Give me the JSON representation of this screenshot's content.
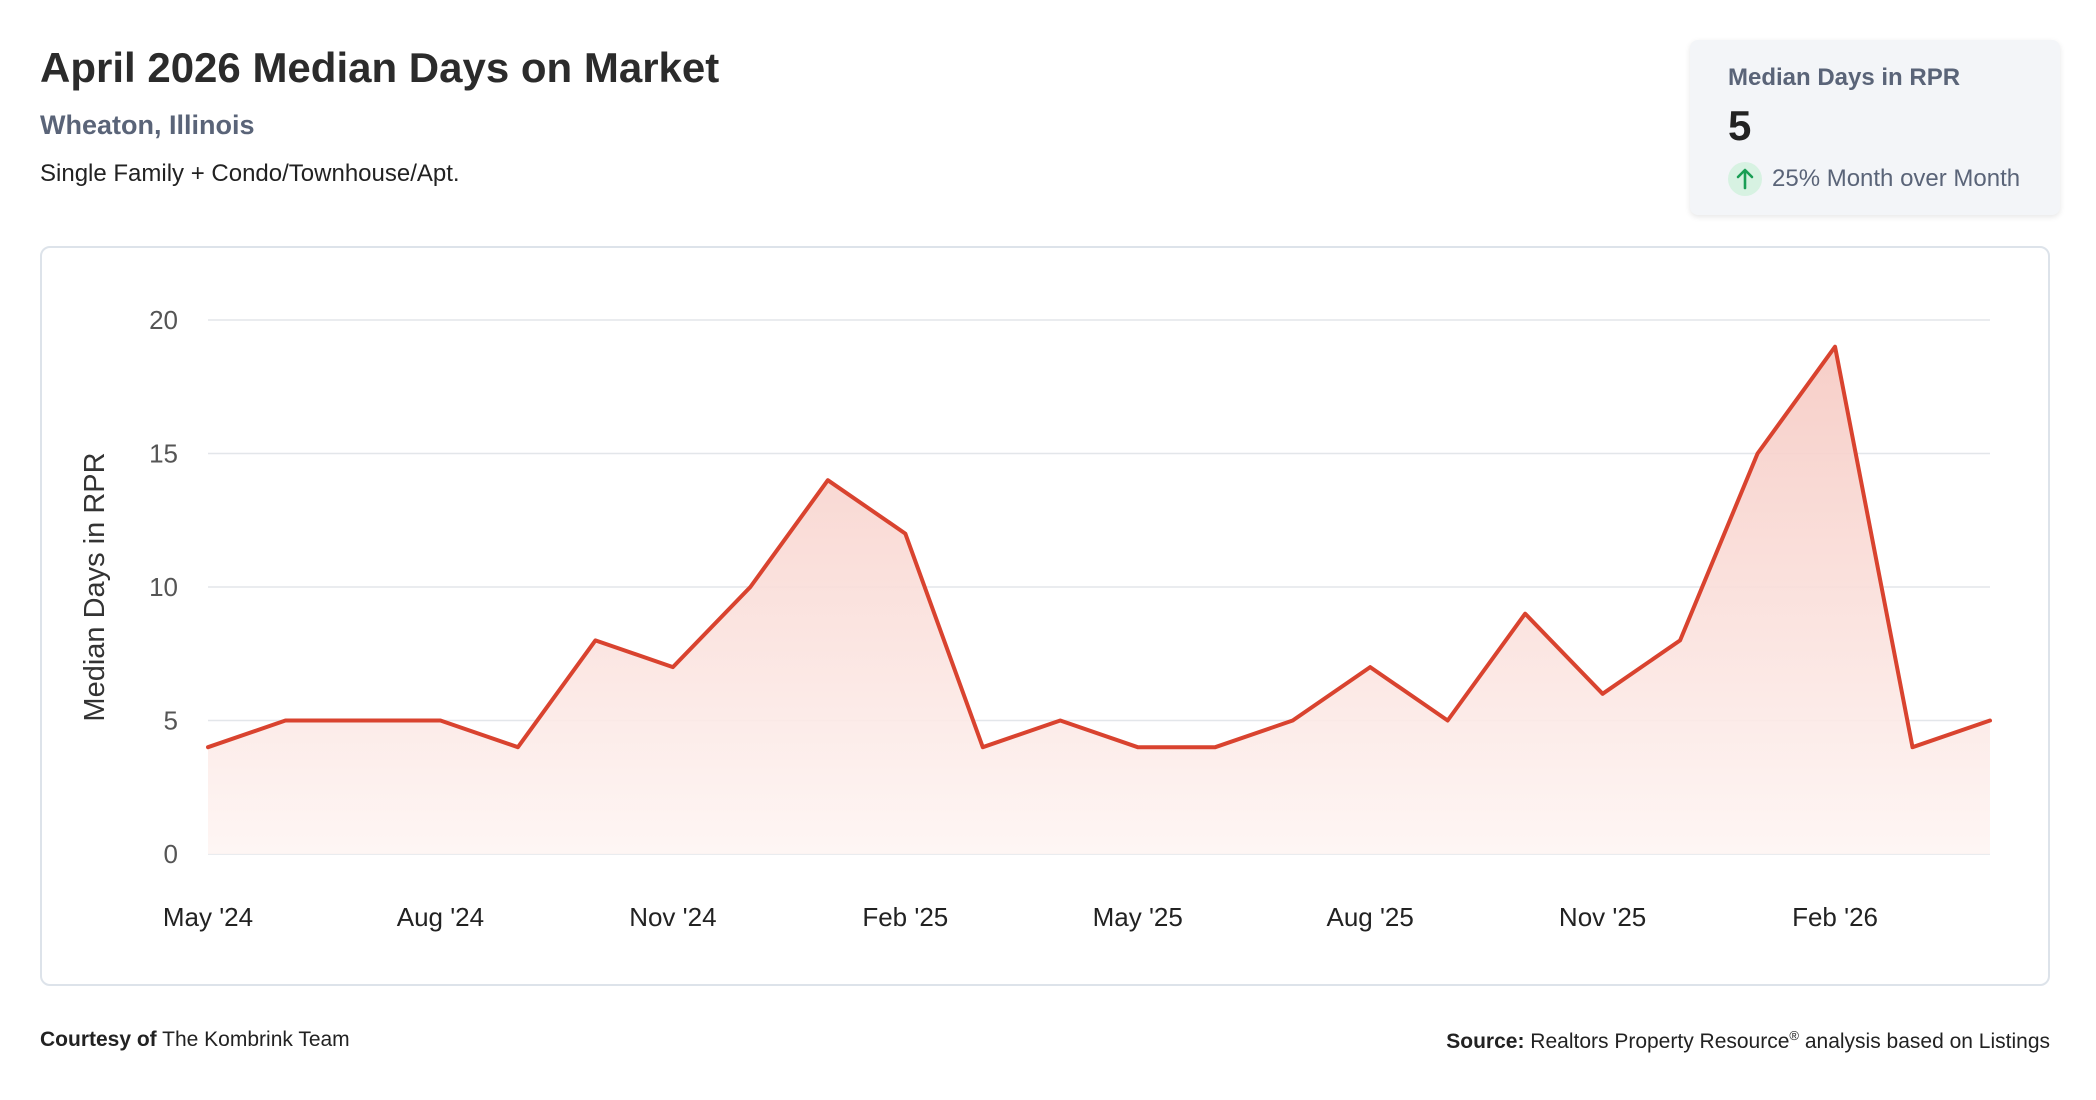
{
  "header": {
    "title": "April 2026 Median Days on Market",
    "location": "Wheaton, Illinois",
    "property_type": "Single Family + Condo/Townhouse/Apt."
  },
  "kpi": {
    "label": "Median Days in RPR",
    "value": "5",
    "change_text": "25% Month over Month",
    "change_direction": "up",
    "icon": "arrow-up-icon"
  },
  "footer": {
    "courtesy_label": "Courtesy of",
    "courtesy_value": "The Kombrink Team",
    "source_label": "Source:",
    "source_value_pre": "Realtors Property Resource",
    "source_registered": "®",
    "source_value_post": "analysis based on Listings"
  },
  "colors": {
    "line": "#d9432f",
    "area_top": "#f6c9c2",
    "area_bottom": "#fef5f3",
    "grid": "#e3e6ea",
    "axis_text": "#555555",
    "kpi_arrow": "#1a9e55",
    "kpi_badge": "#d7f2e2"
  },
  "chart_data": {
    "type": "area",
    "ylabel": "Median Days in RPR",
    "ylim": [
      0,
      20
    ],
    "yticks": [
      0,
      5,
      10,
      15,
      20
    ],
    "x": [
      "May '24",
      "Jun '24",
      "Jul '24",
      "Aug '24",
      "Sep '24",
      "Oct '24",
      "Nov '24",
      "Dec '24",
      "Jan '25",
      "Feb '25",
      "Mar '25",
      "Apr '25",
      "May '25",
      "Jun '25",
      "Jul '25",
      "Aug '25",
      "Sep '25",
      "Oct '25",
      "Nov '25",
      "Dec '25",
      "Jan '26",
      "Feb '26",
      "Mar '26",
      "Apr '26"
    ],
    "xtick_labels": [
      "May '24",
      "Aug '24",
      "Nov '24",
      "Feb '25",
      "May '25",
      "Aug '25",
      "Nov '25",
      "Feb '26"
    ],
    "series": [
      {
        "values": [
          4,
          5,
          5,
          5,
          4,
          8,
          7,
          10,
          14,
          12,
          4,
          5,
          4,
          4,
          5,
          7,
          5,
          9,
          6,
          8,
          15,
          19,
          4,
          5
        ]
      }
    ],
    "grid": true,
    "legend": "none"
  }
}
